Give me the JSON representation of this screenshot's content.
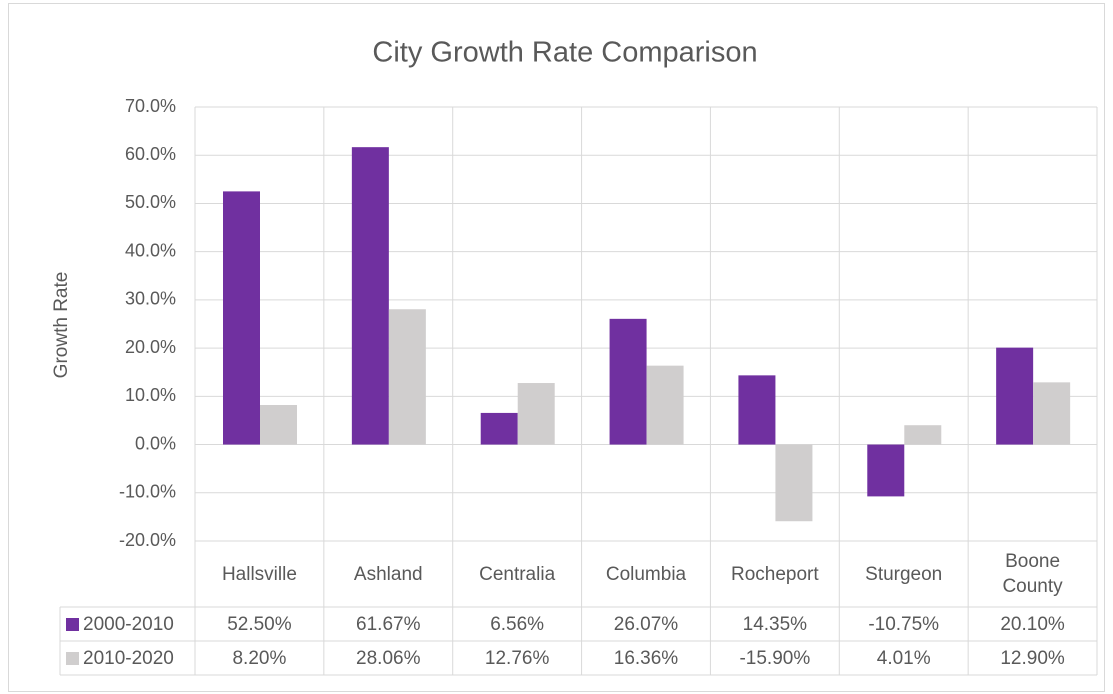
{
  "chart_data": {
    "type": "bar",
    "title": "City Growth Rate Comparison",
    "y_label": "Growth Rate",
    "categories": [
      "Hallsville",
      "Ashland",
      "Centralia",
      "Columbia",
      "Rocheport",
      "Sturgeon",
      "Boone County"
    ],
    "series": [
      {
        "name": "2000-2010",
        "color": "#7030a0",
        "values": [
          52.5,
          61.67,
          6.56,
          26.07,
          14.35,
          -10.75,
          20.1
        ],
        "value_labels": [
          "52.50%",
          "61.67%",
          "6.56%",
          "26.07%",
          "14.35%",
          "-10.75%",
          "20.10%"
        ]
      },
      {
        "name": "2010-2020",
        "color": "#d0cece",
        "values": [
          8.2,
          28.06,
          12.76,
          16.36,
          -15.9,
          4.01,
          12.9
        ],
        "value_labels": [
          "8.20%",
          "28.06%",
          "12.76%",
          "16.36%",
          "-15.90%",
          "4.01%",
          "12.90%"
        ]
      }
    ],
    "ylim": [
      -20,
      70
    ],
    "yticks": [
      {
        "value": -20,
        "label": "-20.0%"
      },
      {
        "value": -10,
        "label": "-10.0%"
      },
      {
        "value": 0,
        "label": "0.0%"
      },
      {
        "value": 10,
        "label": "10.0%"
      },
      {
        "value": 20,
        "label": "20.0%"
      },
      {
        "value": 30,
        "label": "30.0%"
      },
      {
        "value": 40,
        "label": "40.0%"
      },
      {
        "value": 50,
        "label": "50.0%"
      },
      {
        "value": 60,
        "label": "60.0%"
      },
      {
        "value": 70,
        "label": "70.0%"
      }
    ],
    "grid": true
  }
}
